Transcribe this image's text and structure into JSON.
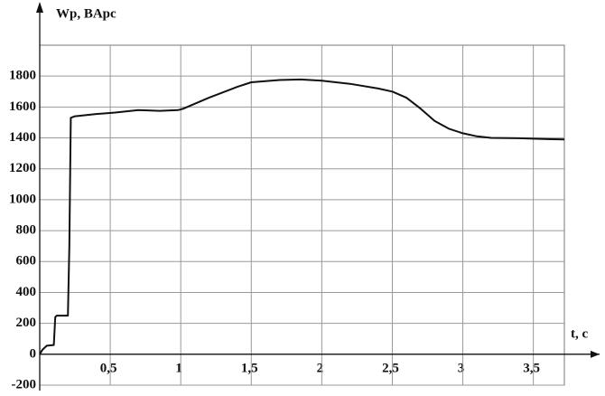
{
  "chart_data": {
    "type": "line",
    "x_label": "t, c",
    "y_label": "Wp, BApc",
    "xlim": [
      0,
      3.72
    ],
    "ylim": [
      -200,
      2000
    ],
    "xticks": [
      {
        "value": 0.5,
        "label": "0,5"
      },
      1,
      {
        "value": 1.5,
        "label": "1,5"
      },
      2,
      {
        "value": 2.5,
        "label": "2,5"
      },
      3,
      {
        "value": 3.5,
        "label": "3,5"
      }
    ],
    "yticks": [
      -200,
      0,
      200,
      400,
      600,
      800,
      1000,
      1200,
      1400,
      1600,
      1800
    ],
    "grid": true,
    "series": [
      {
        "color": "#111111",
        "x": [
          0,
          0.02,
          0.05,
          0.1,
          0.11,
          0.12,
          0.2,
          0.21,
          0.22,
          0.25,
          0.4,
          0.55,
          0.7,
          0.85,
          0.98,
          1.02,
          1.2,
          1.4,
          1.5,
          1.7,
          1.85,
          2.0,
          2.2,
          2.4,
          2.5,
          2.6,
          2.7,
          2.8,
          2.9,
          3.0,
          3.1,
          3.2,
          3.4,
          3.6,
          3.72
        ],
        "values": [
          0,
          30,
          55,
          60,
          240,
          250,
          250,
          700,
          1530,
          1540,
          1555,
          1565,
          1580,
          1575,
          1580,
          1590,
          1660,
          1730,
          1760,
          1775,
          1778,
          1770,
          1750,
          1720,
          1700,
          1660,
          1590,
          1510,
          1460,
          1430,
          1410,
          1400,
          1398,
          1392,
          1390
        ]
      }
    ]
  }
}
